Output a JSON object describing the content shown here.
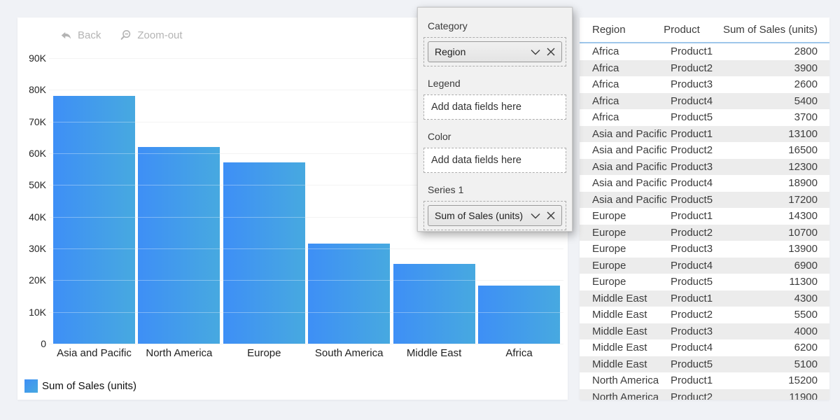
{
  "toolbar": {
    "back_label": "Back",
    "zoom_out_label": "Zoom-out",
    "icons": {
      "back": "reply-arrow",
      "zoom_out": "magnifier-minus"
    },
    "color": "#b4b4b4"
  },
  "chart_data": {
    "type": "bar",
    "categories": [
      "Asia and Pacific",
      "North America",
      "Europe",
      "South America",
      "Middle East",
      "Africa"
    ],
    "values": [
      78000,
      62000,
      57100,
      31600,
      25100,
      18400
    ],
    "title": "",
    "xlabel": "",
    "ylabel": "",
    "ylim": [
      0,
      90000
    ],
    "ytick_labels": [
      "90K",
      "80K",
      "70K",
      "60K",
      "50K",
      "40K",
      "30K",
      "20K",
      "10K",
      "0"
    ],
    "grid": true,
    "legend": {
      "label": "Sum of Sales (units)",
      "position": "bottom-left"
    },
    "bar_color_start": "#3e8ff6",
    "bar_color_end": "#47a9e0"
  },
  "field_panel": {
    "sections": [
      {
        "label": "Category",
        "type": "dropdown",
        "value": "Region",
        "icons": [
          "chevron-down",
          "x-clear"
        ]
      },
      {
        "label": "Legend",
        "type": "dropzone",
        "placeholder": "Add data fields here"
      },
      {
        "label": "Color",
        "type": "dropzone",
        "placeholder": "Add data fields here"
      },
      {
        "label": "Series 1",
        "type": "dropdown",
        "value": "Sum of Sales (units)",
        "icons": [
          "chevron-down",
          "x-clear"
        ]
      }
    ]
  },
  "table": {
    "columns": [
      "Region",
      "Product",
      "Sum of Sales (units)"
    ],
    "header_underline_color": "#9ec6ea",
    "rows": [
      [
        "Africa",
        "Product1",
        2800
      ],
      [
        "Africa",
        "Product2",
        3900
      ],
      [
        "Africa",
        "Product3",
        2600
      ],
      [
        "Africa",
        "Product4",
        5400
      ],
      [
        "Africa",
        "Product5",
        3700
      ],
      [
        "Asia and Pacific",
        "Product1",
        13100
      ],
      [
        "Asia and Pacific",
        "Product2",
        16500
      ],
      [
        "Asia and Pacific",
        "Product3",
        12300
      ],
      [
        "Asia and Pacific",
        "Product4",
        18900
      ],
      [
        "Asia and Pacific",
        "Product5",
        17200
      ],
      [
        "Europe",
        "Product1",
        14300
      ],
      [
        "Europe",
        "Product2",
        10700
      ],
      [
        "Europe",
        "Product3",
        13900
      ],
      [
        "Europe",
        "Product4",
        6900
      ],
      [
        "Europe",
        "Product5",
        11300
      ],
      [
        "Middle East",
        "Product1",
        4300
      ],
      [
        "Middle East",
        "Product2",
        5500
      ],
      [
        "Middle East",
        "Product3",
        4000
      ],
      [
        "Middle East",
        "Product4",
        6200
      ],
      [
        "Middle East",
        "Product5",
        5100
      ],
      [
        "North America",
        "Product1",
        15200
      ],
      [
        "North America",
        "Product2",
        11900
      ]
    ]
  }
}
